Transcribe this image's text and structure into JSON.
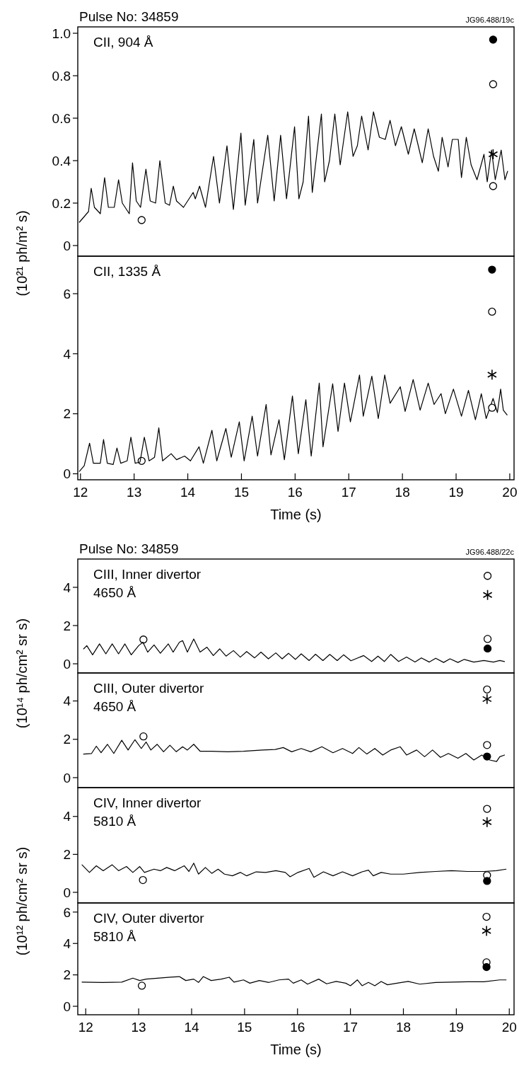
{
  "chart_data": [
    {
      "type": "line",
      "title": "CII, 904 Å",
      "ylabel": "(10²¹ ph/m² s)",
      "annotations": [
        "Pulse No: 34859",
        "JG96.488/19c"
      ],
      "xlim": [
        11.95,
        20.08
      ],
      "ylim": [
        -0.05,
        1.03
      ],
      "yticks": [
        0,
        0.2,
        0.4,
        0.6,
        0.8,
        {
          "value": 1,
          "label": "1.0"
        }
      ],
      "tick_labels": "y",
      "series": [
        {
          "type": "scatter",
          "marker": "circle",
          "color": "#ffffff",
          "x": [
            13.14
          ],
          "values": [
            0.12
          ]
        },
        {
          "color": "#000000",
          "x": [
            11.98,
            12.15,
            12.2,
            12.26,
            12.37,
            12.45,
            12.52,
            12.63,
            12.71,
            12.78,
            12.91,
            12.97,
            13.04,
            13.12,
            13.22,
            13.3,
            13.4,
            13.48,
            13.58,
            13.66,
            13.73,
            13.79,
            13.92,
            14.1,
            14.14,
            14.22,
            14.33,
            14.48,
            14.59,
            14.73,
            14.85,
            14.99,
            15.07,
            15.23,
            15.3,
            15.49,
            15.61,
            15.73,
            15.84,
            15.99,
            16.07,
            16.15,
            16.25,
            16.32,
            16.49,
            16.55,
            16.64,
            16.74,
            16.84,
            16.98,
            17.08,
            17.16,
            17.24,
            17.36,
            17.46,
            17.57,
            17.68,
            17.77,
            17.87,
            17.98,
            18.11,
            18.22,
            18.37,
            18.48,
            18.58,
            18.67,
            18.74,
            18.85,
            18.93,
            19.04,
            19.1,
            19.19,
            19.28,
            19.39,
            19.52,
            19.58,
            19.66,
            19.73,
            19.84,
            19.91,
            19.96
          ],
          "values": [
            0.11,
            0.16,
            0.27,
            0.18,
            0.15,
            0.32,
            0.18,
            0.18,
            0.31,
            0.2,
            0.15,
            0.39,
            0.21,
            0.18,
            0.36,
            0.21,
            0.2,
            0.4,
            0.2,
            0.19,
            0.28,
            0.21,
            0.18,
            0.25,
            0.22,
            0.28,
            0.18,
            0.42,
            0.2,
            0.47,
            0.17,
            0.53,
            0.19,
            0.5,
            0.2,
            0.52,
            0.21,
            0.52,
            0.22,
            0.56,
            0.22,
            0.3,
            0.61,
            0.25,
            0.62,
            0.3,
            0.4,
            0.62,
            0.38,
            0.63,
            0.42,
            0.47,
            0.61,
            0.45,
            0.63,
            0.51,
            0.5,
            0.59,
            0.47,
            0.56,
            0.43,
            0.55,
            0.39,
            0.55,
            0.42,
            0.35,
            0.51,
            0.37,
            0.5,
            0.5,
            0.32,
            0.51,
            0.38,
            0.31,
            0.43,
            0.3,
            0.45,
            0.31,
            0.45,
            0.31,
            0.35
          ]
        },
        {
          "type": "scatter",
          "marker": "circle",
          "color": "#000000",
          "x": [
            19.69
          ],
          "values": [
            0.97
          ]
        },
        {
          "type": "scatter",
          "marker": "circle",
          "color": "#ffffff",
          "x": [
            19.69,
            19.69
          ],
          "values": [
            0.76,
            0.28
          ]
        },
        {
          "type": "scatter",
          "marker": "cross",
          "color": "#000000",
          "x": [
            19.69
          ],
          "values": [
            0.43
          ]
        }
      ]
    },
    {
      "type": "line",
      "title": "CII, 1335 Å",
      "xlabel": "Time (s)",
      "xlim": [
        11.95,
        20.08
      ],
      "xticks": [
        12,
        13,
        14,
        15,
        16,
        17,
        18,
        19,
        20
      ],
      "ylim": [
        -0.2,
        7.25
      ],
      "yticks": [
        0,
        2,
        4,
        6
      ],
      "series": [
        {
          "type": "scatter",
          "marker": "circle",
          "color": "#ffffff",
          "x": [
            13.14
          ],
          "values": [
            0.43
          ]
        },
        {
          "color": "#000000",
          "x": [
            11.98,
            12.07,
            12.17,
            12.24,
            12.37,
            12.43,
            12.5,
            12.61,
            12.68,
            12.75,
            12.87,
            12.94,
            13.02,
            13.11,
            13.19,
            13.28,
            13.38,
            13.46,
            13.53,
            13.69,
            13.79,
            13.94,
            14.05,
            14.21,
            14.29,
            14.45,
            14.54,
            14.71,
            14.81,
            14.96,
            15.05,
            15.2,
            15.3,
            15.46,
            15.55,
            15.7,
            15.8,
            15.95,
            16.06,
            16.2,
            16.3,
            16.45,
            16.52,
            16.7,
            16.8,
            16.92,
            17.03,
            17.2,
            17.27,
            17.43,
            17.55,
            17.67,
            17.77,
            17.96,
            18.05,
            18.2,
            18.33,
            18.48,
            18.59,
            18.72,
            18.8,
            18.95,
            19.1,
            19.23,
            19.36,
            19.47,
            19.56,
            19.69,
            19.77,
            19.83,
            19.88,
            19.95
          ],
          "values": [
            0.08,
            0.27,
            1.02,
            0.35,
            0.35,
            1.14,
            0.35,
            0.31,
            0.86,
            0.35,
            0.43,
            1.22,
            0.35,
            0.39,
            1.22,
            0.43,
            0.55,
            1.53,
            0.43,
            0.67,
            0.47,
            0.59,
            0.43,
            0.9,
            0.35,
            1.45,
            0.43,
            1.51,
            0.55,
            1.73,
            0.43,
            1.92,
            0.59,
            2.31,
            0.63,
            1.8,
            0.47,
            2.59,
            0.67,
            2.47,
            0.59,
            3.02,
            0.9,
            3.0,
            1.41,
            3.02,
            1.73,
            3.29,
            1.92,
            3.25,
            1.84,
            3.29,
            2.35,
            2.9,
            2.08,
            3.14,
            2.12,
            3.02,
            2.31,
            2.67,
            2.0,
            2.82,
            1.92,
            2.78,
            1.8,
            2.67,
            1.84,
            2.51,
            2.04,
            2.82,
            2.12,
            1.96
          ]
        },
        {
          "type": "scatter",
          "marker": "circle",
          "color": "#000000",
          "x": [
            19.67
          ],
          "values": [
            6.8
          ]
        },
        {
          "type": "scatter",
          "marker": "circle",
          "color": "#ffffff",
          "x": [
            19.67,
            19.67
          ],
          "values": [
            5.4,
            2.2
          ]
        },
        {
          "type": "scatter",
          "marker": "cross",
          "color": "#000000",
          "x": [
            19.67
          ],
          "values": [
            3.3
          ]
        }
      ]
    },
    {
      "type": "line",
      "title": "CIII, Inner divertor\n4650 Å",
      "ylabel": "(10¹⁴ ph/cm² sr s)",
      "annotations": [
        "Pulse No: 34859",
        "JG96.488/22c"
      ],
      "xlim": [
        11.85,
        20.09
      ],
      "ylim": [
        -0.48,
        5.48
      ],
      "yticks": [
        0,
        2,
        4
      ],
      "tick_labels": "y",
      "series": [
        {
          "type": "scatter",
          "marker": "circle",
          "color": "#ffffff",
          "x": [
            13.09
          ],
          "values": [
            1.27
          ]
        },
        {
          "color": "#000000",
          "x": [
            11.96,
            12.02,
            12.13,
            12.26,
            12.38,
            12.5,
            12.62,
            12.74,
            12.86,
            13.0,
            13.08,
            13.17,
            13.29,
            13.41,
            13.56,
            13.65,
            13.77,
            13.83,
            13.92,
            14.04,
            14.16,
            14.29,
            14.41,
            14.53,
            14.65,
            14.79,
            14.92,
            15.04,
            15.19,
            15.31,
            15.45,
            15.59,
            15.71,
            15.83,
            15.96,
            16.07,
            16.22,
            16.34,
            16.48,
            16.61,
            16.75,
            16.87,
            17.01,
            17.25,
            17.4,
            17.52,
            17.64,
            17.76,
            17.91,
            18.06,
            18.22,
            18.34,
            18.49,
            18.61,
            18.76,
            18.88,
            19.03,
            19.15,
            19.33,
            19.52,
            19.7,
            19.82,
            19.91
          ],
          "values": [
            0.78,
            0.95,
            0.47,
            1.04,
            0.52,
            1.04,
            0.52,
            1.04,
            0.47,
            0.95,
            1.13,
            0.61,
            0.99,
            0.55,
            1.04,
            0.61,
            1.13,
            1.21,
            0.61,
            1.3,
            0.61,
            0.87,
            0.43,
            0.78,
            0.4,
            0.69,
            0.35,
            0.64,
            0.31,
            0.61,
            0.26,
            0.57,
            0.26,
            0.55,
            0.23,
            0.52,
            0.17,
            0.5,
            0.17,
            0.49,
            0.17,
            0.47,
            0.16,
            0.43,
            0.12,
            0.4,
            0.12,
            0.49,
            0.12,
            0.35,
            0.09,
            0.31,
            0.09,
            0.29,
            0.07,
            0.26,
            0.07,
            0.23,
            0.09,
            0.17,
            0.09,
            0.17,
            0.12
          ]
        },
        {
          "type": "scatter",
          "marker": "circle",
          "color": "#ffffff",
          "x": [
            19.59,
            19.59
          ],
          "values": [
            4.6,
            1.3
          ]
        },
        {
          "type": "scatter",
          "marker": "cross",
          "color": "#000000",
          "x": [
            19.59
          ],
          "values": [
            3.6
          ]
        },
        {
          "type": "scatter",
          "marker": "circle",
          "color": "#000000",
          "x": [
            19.59
          ],
          "values": [
            0.8
          ]
        }
      ]
    },
    {
      "type": "line",
      "title": "CIII, Outer divertor\n4650 Å",
      "xlim": [
        11.85,
        20.09
      ],
      "ylim": [
        -0.52,
        5.46
      ],
      "yticks": [
        0,
        2,
        4
      ],
      "tick_labels": "y",
      "series": [
        {
          "type": "scatter",
          "marker": "circle",
          "color": "#ffffff",
          "x": [
            13.09
          ],
          "values": [
            2.15
          ]
        },
        {
          "color": "#000000",
          "x": [
            11.96,
            12.11,
            12.2,
            12.29,
            12.41,
            12.53,
            12.68,
            12.8,
            12.93,
            13.05,
            13.14,
            13.23,
            13.35,
            13.47,
            13.59,
            13.71,
            13.83,
            13.92,
            14.04,
            14.16,
            14.38,
            14.68,
            14.98,
            15.34,
            15.58,
            15.73,
            15.89,
            16.07,
            16.25,
            16.46,
            16.67,
            16.85,
            17.04,
            17.16,
            17.31,
            17.46,
            17.61,
            17.76,
            17.94,
            18.06,
            18.25,
            18.4,
            18.55,
            18.7,
            18.85,
            19.03,
            19.18,
            19.33,
            19.48,
            19.63,
            19.76,
            19.82,
            19.91
          ],
          "values": [
            1.23,
            1.26,
            1.64,
            1.3,
            1.74,
            1.26,
            1.95,
            1.44,
            1.98,
            1.52,
            1.86,
            1.44,
            1.74,
            1.35,
            1.69,
            1.35,
            1.61,
            1.44,
            1.74,
            1.38,
            1.38,
            1.35,
            1.38,
            1.44,
            1.47,
            1.57,
            1.35,
            1.52,
            1.35,
            1.61,
            1.3,
            1.52,
            1.26,
            1.57,
            1.23,
            1.52,
            1.18,
            1.44,
            1.61,
            1.18,
            1.44,
            1.09,
            1.44,
            1.06,
            1.26,
            1.01,
            1.26,
            0.92,
            1.18,
            0.92,
            0.84,
            1.09,
            1.18
          ]
        },
        {
          "type": "scatter",
          "marker": "circle",
          "color": "#ffffff",
          "x": [
            19.58,
            19.58
          ],
          "values": [
            4.6,
            1.7
          ]
        },
        {
          "type": "scatter",
          "marker": "cross",
          "color": "#000000",
          "x": [
            19.58
          ],
          "values": [
            4.1
          ]
        },
        {
          "type": "scatter",
          "marker": "circle",
          "color": "#000000",
          "x": [
            19.58
          ],
          "values": [
            1.1
          ]
        }
      ]
    },
    {
      "type": "line",
      "title": "CIV, Inner divertor\n5810 Å",
      "ylabel": "(10¹² ph/cm² sr s)",
      "xlim": [
        11.85,
        20.09
      ],
      "ylim": [
        -0.56,
        5.52
      ],
      "yticks": [
        0,
        2,
        4
      ],
      "tick_labels": "y",
      "series": [
        {
          "type": "scatter",
          "marker": "circle",
          "color": "#ffffff",
          "x": [
            13.08
          ],
          "values": [
            0.65
          ]
        },
        {
          "color": "#000000",
          "x": [
            11.93,
            12.07,
            12.2,
            12.33,
            12.5,
            12.62,
            12.77,
            12.89,
            13.02,
            13.11,
            13.29,
            13.41,
            13.53,
            13.68,
            13.86,
            13.95,
            14.04,
            14.13,
            14.26,
            14.38,
            14.5,
            14.62,
            14.77,
            14.92,
            15.04,
            15.22,
            15.4,
            15.59,
            15.77,
            15.86,
            16.01,
            16.22,
            16.31,
            16.49,
            16.67,
            16.85,
            17.04,
            17.22,
            17.34,
            17.43,
            17.58,
            17.76,
            18.0,
            18.31,
            18.61,
            18.91,
            19.21,
            19.52,
            19.76,
            19.94
          ],
          "values": [
            1.45,
            1.05,
            1.4,
            1.14,
            1.45,
            1.14,
            1.36,
            1.05,
            1.36,
            1.05,
            1.22,
            1.14,
            1.31,
            1.14,
            1.4,
            1.1,
            1.54,
            0.96,
            1.31,
            1.0,
            1.22,
            0.96,
            0.87,
            1.05,
            0.87,
            1.08,
            1.05,
            1.14,
            1.05,
            0.82,
            1.05,
            1.26,
            0.79,
            1.08,
            0.87,
            1.08,
            0.87,
            1.08,
            1.17,
            0.87,
            1.05,
            0.96,
            0.96,
            1.05,
            1.1,
            1.14,
            1.1,
            1.1,
            1.14,
            1.22
          ]
        },
        {
          "type": "scatter",
          "marker": "circle",
          "color": "#ffffff",
          "x": [
            19.58,
            19.58
          ],
          "values": [
            4.4,
            0.9
          ]
        },
        {
          "type": "scatter",
          "marker": "cross",
          "color": "#000000",
          "x": [
            19.58
          ],
          "values": [
            3.7
          ]
        },
        {
          "type": "scatter",
          "marker": "circle",
          "color": "#000000",
          "x": [
            19.58
          ],
          "values": [
            0.6
          ]
        }
      ]
    },
    {
      "type": "line",
      "title": "CIV, Outer divertor\n5810 Å",
      "xlabel": "Time (s)",
      "xlim": [
        11.85,
        20.09
      ],
      "xticks": [
        12,
        13,
        14,
        15,
        16,
        17,
        18,
        19,
        20
      ],
      "ylim": [
        -0.54,
        6.58
      ],
      "yticks": [
        0,
        2,
        4,
        6
      ],
      "series": [
        {
          "type": "scatter",
          "marker": "circle",
          "color": "#ffffff",
          "x": [
            13.06
          ],
          "values": [
            1.31
          ]
        },
        {
          "color": "#000000",
          "x": [
            11.93,
            12.32,
            12.68,
            12.89,
            13.02,
            13.14,
            13.35,
            13.6,
            13.77,
            13.89,
            14.04,
            14.13,
            14.22,
            14.37,
            14.56,
            14.71,
            14.8,
            14.98,
            15.1,
            15.28,
            15.46,
            15.65,
            15.83,
            15.92,
            16.07,
            16.19,
            16.4,
            16.55,
            16.73,
            16.91,
            17.0,
            17.13,
            17.22,
            17.34,
            17.46,
            17.58,
            17.7,
            17.88,
            18.09,
            18.31,
            18.61,
            19.21,
            19.52,
            19.82,
            19.94
          ],
          "values": [
            1.54,
            1.52,
            1.54,
            1.79,
            1.64,
            1.73,
            1.79,
            1.85,
            1.89,
            1.64,
            1.73,
            1.52,
            1.89,
            1.64,
            1.73,
            1.85,
            1.54,
            1.68,
            1.47,
            1.64,
            1.52,
            1.68,
            1.73,
            1.47,
            1.68,
            1.41,
            1.73,
            1.43,
            1.58,
            1.47,
            1.31,
            1.68,
            1.31,
            1.52,
            1.31,
            1.58,
            1.37,
            1.47,
            1.58,
            1.41,
            1.52,
            1.56,
            1.56,
            1.68,
            1.68
          ]
        },
        {
          "type": "scatter",
          "marker": "circle",
          "color": "#ffffff",
          "x": [
            19.57,
            19.57
          ],
          "values": [
            5.7,
            2.8
          ]
        },
        {
          "type": "scatter",
          "marker": "cross",
          "color": "#000000",
          "x": [
            19.57
          ],
          "values": [
            4.8
          ]
        },
        {
          "type": "scatter",
          "marker": "circle",
          "color": "#000000",
          "x": [
            19.57
          ],
          "values": [
            2.5
          ]
        }
      ]
    }
  ]
}
